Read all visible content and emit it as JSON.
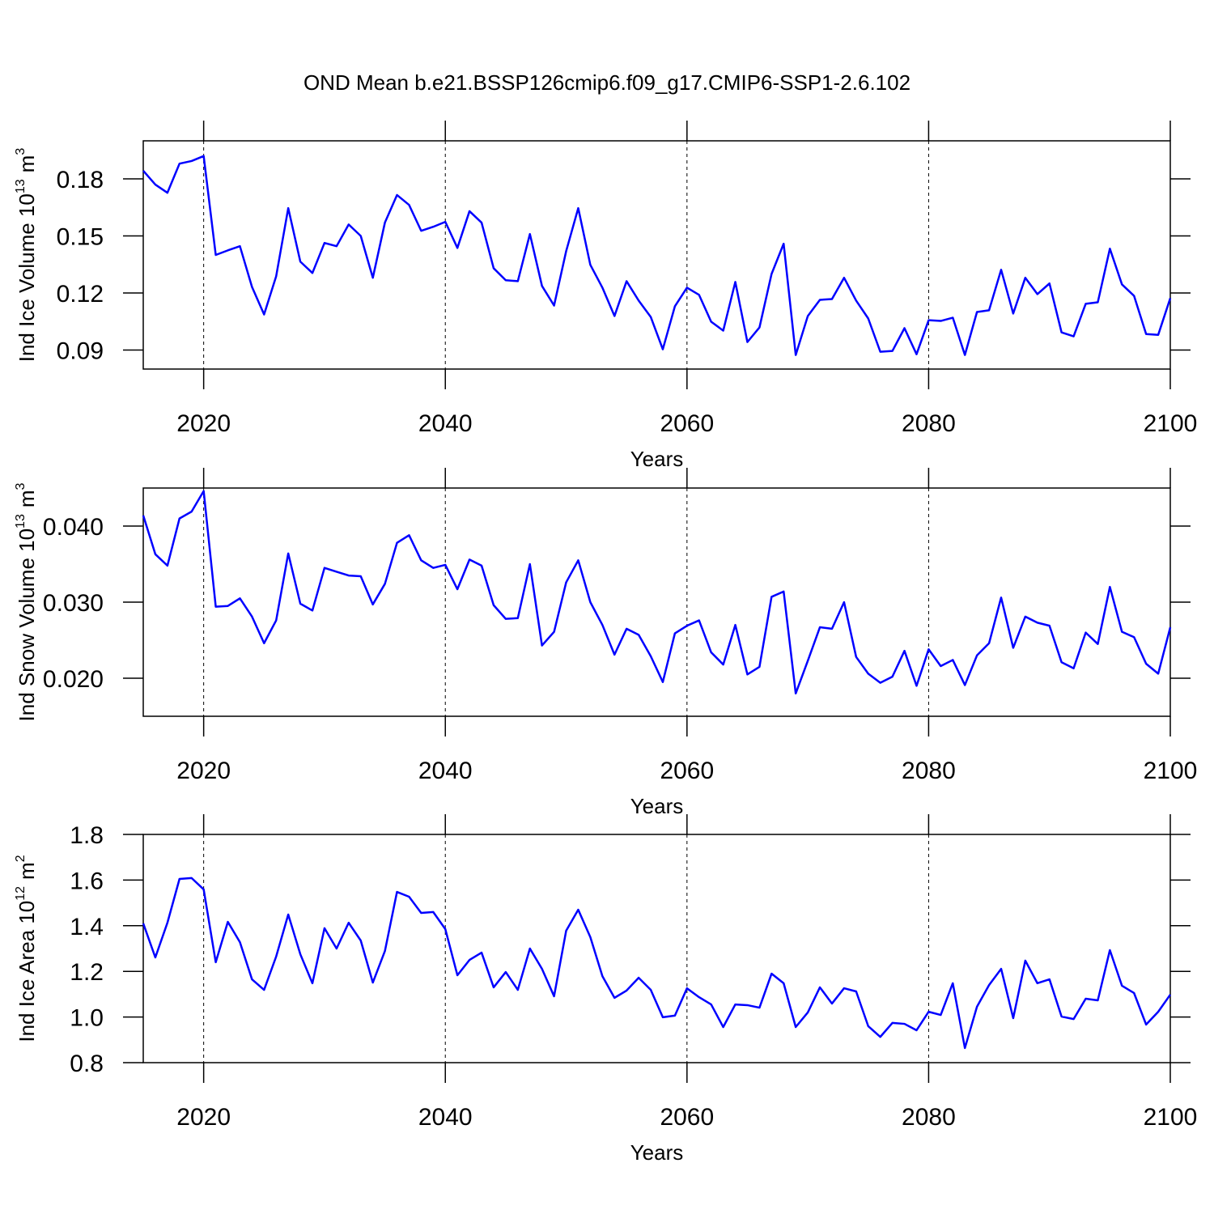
{
  "title": "OND Mean b.e21.BSSP126cmip6.f09_g17.CMIP6-SSP1-2.6.102",
  "chart_data": [
    {
      "type": "line",
      "color": "#0000ff",
      "grid": true,
      "ylabel": {
        "text": "Ind Ice Volume 10",
        "sup": "13",
        "unit": "m",
        "unit_sup": "3"
      },
      "xlabel": "Years",
      "xlim": [
        2015,
        2100
      ],
      "xticks": [
        2020,
        2040,
        2060,
        2080,
        2100
      ],
      "ylim": [
        0.08,
        0.2
      ],
      "yticks": [
        0.09,
        0.12,
        0.15,
        0.18
      ],
      "x": [
        2015,
        2016,
        2017,
        2018,
        2019,
        2020,
        2021,
        2022,
        2023,
        2024,
        2025,
        2026,
        2027,
        2028,
        2029,
        2030,
        2031,
        2032,
        2033,
        2034,
        2035,
        2036,
        2037,
        2038,
        2039,
        2040,
        2041,
        2042,
        2043,
        2044,
        2045,
        2046,
        2047,
        2048,
        2049,
        2050,
        2051,
        2052,
        2053,
        2054,
        2055,
        2056,
        2057,
        2058,
        2059,
        2060,
        2061,
        2062,
        2063,
        2064,
        2065,
        2066,
        2067,
        2068,
        2069,
        2070,
        2071,
        2072,
        2073,
        2074,
        2075,
        2076,
        2077,
        2078,
        2079,
        2080,
        2081,
        2082,
        2083,
        2084,
        2085,
        2086,
        2087,
        2088,
        2089,
        2090,
        2091,
        2092,
        2093,
        2094,
        2095,
        2096,
        2097,
        2098,
        2099,
        2100
      ],
      "values": [
        0.1843,
        0.177,
        0.1727,
        0.188,
        0.1894,
        0.192,
        0.14,
        0.1424,
        0.1446,
        0.1232,
        0.1087,
        0.1288,
        0.1646,
        0.1365,
        0.1305,
        0.1463,
        0.1446,
        0.156,
        0.15,
        0.128,
        0.157,
        0.1715,
        0.1663,
        0.1527,
        0.1548,
        0.1574,
        0.1437,
        0.163,
        0.157,
        0.133,
        0.1267,
        0.1262,
        0.151,
        0.1237,
        0.1134,
        0.142,
        0.1646,
        0.1348,
        0.1228,
        0.1079,
        0.1262,
        0.116,
        0.1074,
        0.0904,
        0.113,
        0.1228,
        0.119,
        0.1049,
        0.1002,
        0.1258,
        0.0942,
        0.1019,
        0.13,
        0.1459,
        0.0874,
        0.1079,
        0.1164,
        0.1168,
        0.128,
        0.116,
        0.1066,
        0.0891,
        0.0895,
        0.1015,
        0.0878,
        0.1057,
        0.1053,
        0.107,
        0.0874,
        0.11,
        0.1109,
        0.1322,
        0.1092,
        0.128,
        0.1194,
        0.125,
        0.0993,
        0.0972,
        0.1143,
        0.1151,
        0.1433,
        0.1245,
        0.1185,
        0.0984,
        0.098,
        0.1173
      ]
    },
    {
      "type": "line",
      "color": "#0000ff",
      "grid": true,
      "ylabel": {
        "text": "Ind Snow Volume 10",
        "sup": "13",
        "unit": "m",
        "unit_sup": "3"
      },
      "xlabel": "Years",
      "xlim": [
        2015,
        2100
      ],
      "xticks": [
        2020,
        2040,
        2060,
        2080,
        2100
      ],
      "ylim": [
        0.015,
        0.045
      ],
      "yticks": [
        {
          "value": 0.02,
          "label": "0.020"
        },
        {
          "value": 0.03,
          "label": "0.030"
        },
        {
          "value": 0.04,
          "label": "0.040"
        }
      ],
      "x": [
        2015,
        2016,
        2017,
        2018,
        2019,
        2020,
        2021,
        2022,
        2023,
        2024,
        2025,
        2026,
        2027,
        2028,
        2029,
        2030,
        2031,
        2032,
        2033,
        2034,
        2035,
        2036,
        2037,
        2038,
        2039,
        2040,
        2041,
        2042,
        2043,
        2044,
        2045,
        2046,
        2047,
        2048,
        2049,
        2050,
        2051,
        2052,
        2053,
        2054,
        2055,
        2056,
        2057,
        2058,
        2059,
        2060,
        2061,
        2062,
        2063,
        2064,
        2065,
        2066,
        2067,
        2068,
        2069,
        2070,
        2071,
        2072,
        2073,
        2074,
        2075,
        2076,
        2077,
        2078,
        2079,
        2080,
        2081,
        2082,
        2083,
        2084,
        2085,
        2086,
        2087,
        2088,
        2089,
        2090,
        2091,
        2092,
        2093,
        2094,
        2095,
        2096,
        2097,
        2098,
        2099,
        2100
      ],
      "values": [
        0.0414,
        0.0363,
        0.0348,
        0.041,
        0.0419,
        0.0446,
        0.0294,
        0.0295,
        0.0305,
        0.0281,
        0.0246,
        0.0276,
        0.0364,
        0.0298,
        0.0289,
        0.0345,
        0.034,
        0.0335,
        0.0334,
        0.0297,
        0.0324,
        0.0378,
        0.0388,
        0.0355,
        0.0345,
        0.0349,
        0.0317,
        0.0356,
        0.0348,
        0.0296,
        0.0278,
        0.0279,
        0.035,
        0.0243,
        0.0261,
        0.0326,
        0.0355,
        0.03,
        0.027,
        0.0231,
        0.0265,
        0.0257,
        0.0229,
        0.0195,
        0.0259,
        0.0269,
        0.0276,
        0.0234,
        0.0218,
        0.027,
        0.0205,
        0.0215,
        0.0307,
        0.0314,
        0.018,
        0.0223,
        0.0267,
        0.0265,
        0.03,
        0.0228,
        0.0206,
        0.0194,
        0.0202,
        0.0236,
        0.019,
        0.0238,
        0.0216,
        0.0224,
        0.0191,
        0.023,
        0.0246,
        0.0306,
        0.024,
        0.0281,
        0.0273,
        0.0269,
        0.0221,
        0.0213,
        0.026,
        0.0245,
        0.032,
        0.0261,
        0.0254,
        0.0219,
        0.0206,
        0.0267
      ]
    },
    {
      "type": "line",
      "color": "#0000ff",
      "grid": true,
      "ylabel": {
        "text": "Ind Ice Area 10",
        "sup": "12",
        "unit": "m",
        "unit_sup": "2"
      },
      "xlabel": "Years",
      "xlim": [
        2015,
        2100
      ],
      "xticks": [
        2020,
        2040,
        2060,
        2080,
        2100
      ],
      "ylim": [
        0.8,
        1.8
      ],
      "yticks": [
        0.8,
        {
          "value": 1,
          "label": "1.0"
        },
        1.2,
        1.4,
        1.6,
        1.8
      ],
      "x": [
        2015,
        2016,
        2017,
        2018,
        2019,
        2020,
        2021,
        2022,
        2023,
        2024,
        2025,
        2026,
        2027,
        2028,
        2029,
        2030,
        2031,
        2032,
        2033,
        2034,
        2035,
        2036,
        2037,
        2038,
        2039,
        2040,
        2041,
        2042,
        2043,
        2044,
        2045,
        2046,
        2047,
        2048,
        2049,
        2050,
        2051,
        2052,
        2053,
        2054,
        2055,
        2056,
        2057,
        2058,
        2059,
        2060,
        2061,
        2062,
        2063,
        2064,
        2065,
        2066,
        2067,
        2068,
        2069,
        2070,
        2071,
        2072,
        2073,
        2074,
        2075,
        2076,
        2077,
        2078,
        2079,
        2080,
        2081,
        2082,
        2083,
        2084,
        2085,
        2086,
        2087,
        2088,
        2089,
        2090,
        2091,
        2092,
        2093,
        2094,
        2095,
        2096,
        2097,
        2098,
        2099,
        2100
      ],
      "values": [
        1.41,
        1.261,
        1.413,
        1.605,
        1.609,
        1.559,
        1.24,
        1.417,
        1.328,
        1.165,
        1.119,
        1.265,
        1.449,
        1.275,
        1.148,
        1.389,
        1.3,
        1.413,
        1.335,
        1.151,
        1.289,
        1.548,
        1.527,
        1.456,
        1.46,
        1.385,
        1.183,
        1.25,
        1.282,
        1.13,
        1.197,
        1.119,
        1.3,
        1.211,
        1.091,
        1.378,
        1.47,
        1.35,
        1.179,
        1.084,
        1.116,
        1.172,
        1.119,
        0.999,
        1.006,
        1.126,
        1.087,
        1.055,
        0.956,
        1.055,
        1.052,
        1.041,
        1.19,
        1.148,
        0.956,
        1.02,
        1.13,
        1.059,
        1.126,
        1.112,
        0.96,
        0.913,
        0.974,
        0.97,
        0.942,
        1.023,
        1.009,
        1.148,
        0.864,
        1.045,
        1.14,
        1.211,
        0.995,
        1.247,
        1.148,
        1.165,
        1.002,
        0.991,
        1.08,
        1.073,
        1.293,
        1.137,
        1.105,
        0.967,
        1.023,
        1.098
      ]
    }
  ]
}
